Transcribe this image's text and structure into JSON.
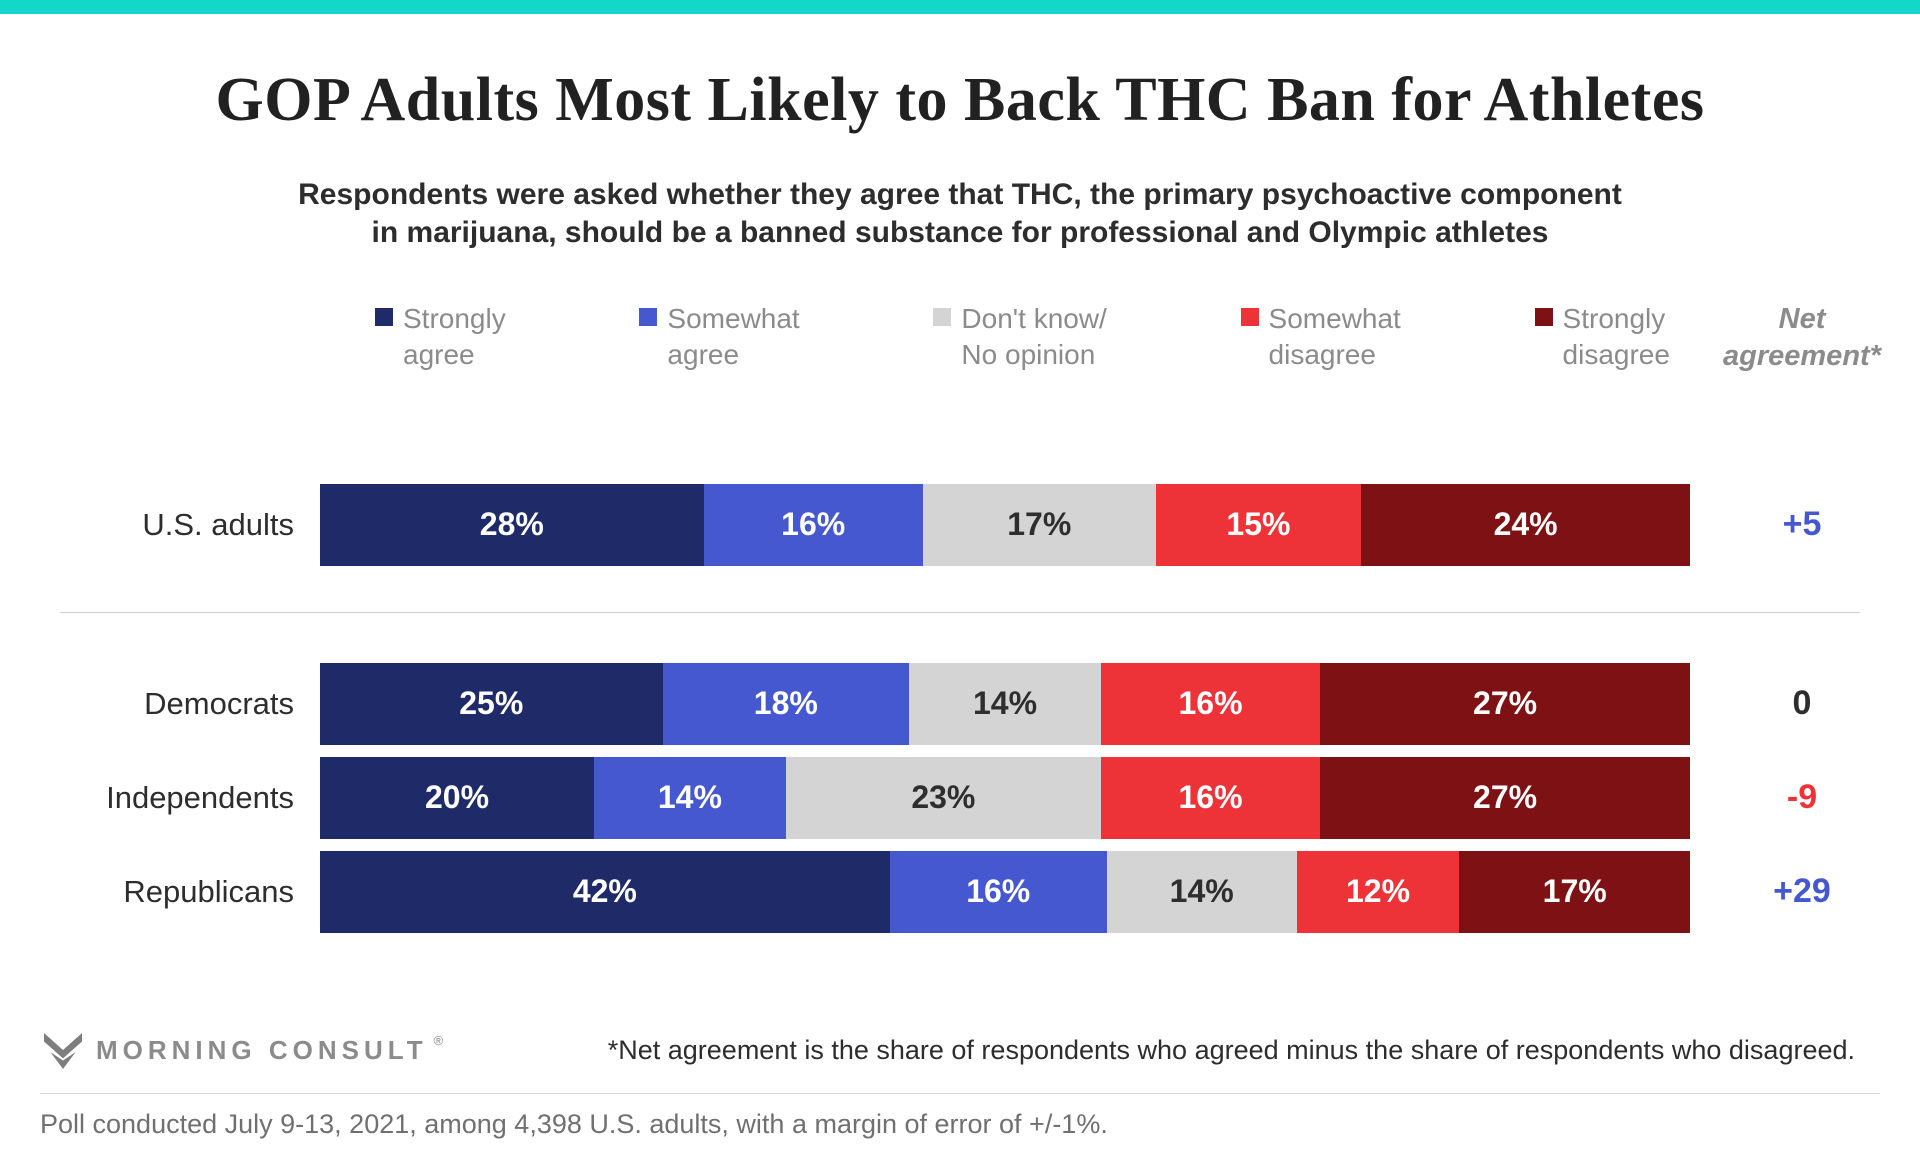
{
  "accent_color": "#13d8c9",
  "title": "GOP Adults Most Likely to Back THC Ban for Athletes",
  "subtitle": {
    "line1": "Respondents were asked whether they agree that THC, the primary psychoactive component",
    "line2": "in marijuana, should be a banned substance for professional and Olympic athletes"
  },
  "legend": {
    "items": [
      {
        "line1": "Strongly",
        "line2": "agree",
        "color": "#1f2a68"
      },
      {
        "line1": "Somewhat",
        "line2": "agree",
        "color": "#4558d0"
      },
      {
        "line1": "Don't know/",
        "line2": "No opinion",
        "color": "#d4d4d4"
      },
      {
        "line1": "Somewhat",
        "line2": "disagree",
        "color": "#ee3338"
      },
      {
        "line1": "Strongly",
        "line2": "disagree",
        "color": "#7d1114"
      }
    ],
    "net_header": {
      "line1": "Net",
      "line2": "agreement*"
    }
  },
  "chart_data": {
    "type": "bar",
    "stacked": true,
    "orientation": "horizontal",
    "unit": "%",
    "value_suffix": "%",
    "axis_range": [
      0,
      100
    ],
    "categories": [
      "U.S. adults",
      "Democrats",
      "Independents",
      "Republicans"
    ],
    "series": [
      {
        "name": "Strongly agree",
        "color": "#1f2a68",
        "label_color": "#ffffff",
        "values": [
          28,
          25,
          20,
          42
        ]
      },
      {
        "name": "Somewhat agree",
        "color": "#4558d0",
        "label_color": "#ffffff",
        "values": [
          16,
          18,
          14,
          16
        ]
      },
      {
        "name": "Don't know/No opinion",
        "color": "#d4d4d4",
        "label_color": "#2e2e2e",
        "values": [
          17,
          14,
          23,
          14
        ]
      },
      {
        "name": "Somewhat disagree",
        "color": "#ee3338",
        "label_color": "#ffffff",
        "values": [
          15,
          16,
          16,
          12
        ]
      },
      {
        "name": "Strongly disagree",
        "color": "#7d1114",
        "label_color": "#ffffff",
        "values": [
          24,
          27,
          27,
          17
        ]
      }
    ],
    "net_agreement": [
      {
        "category": "U.S. adults",
        "label": "+5",
        "value": 5,
        "color": "#4558d0"
      },
      {
        "category": "Democrats",
        "label": "0",
        "value": 0,
        "color": "#2e2e2e"
      },
      {
        "category": "Independents",
        "label": "-9",
        "value": -9,
        "color": "#ee3338"
      },
      {
        "category": "Republicans",
        "label": "+29",
        "value": 29,
        "color": "#4558d0"
      }
    ]
  },
  "footer": {
    "brand": "MORNING CONSULT",
    "registered_mark": "®",
    "footnote": "*Net agreement is the share of respondents who agreed minus the share of respondents who disagreed.",
    "poll_note": "Poll conducted July 9-13, 2021, among 4,398 U.S. adults, with a margin of error of +/-1%."
  }
}
